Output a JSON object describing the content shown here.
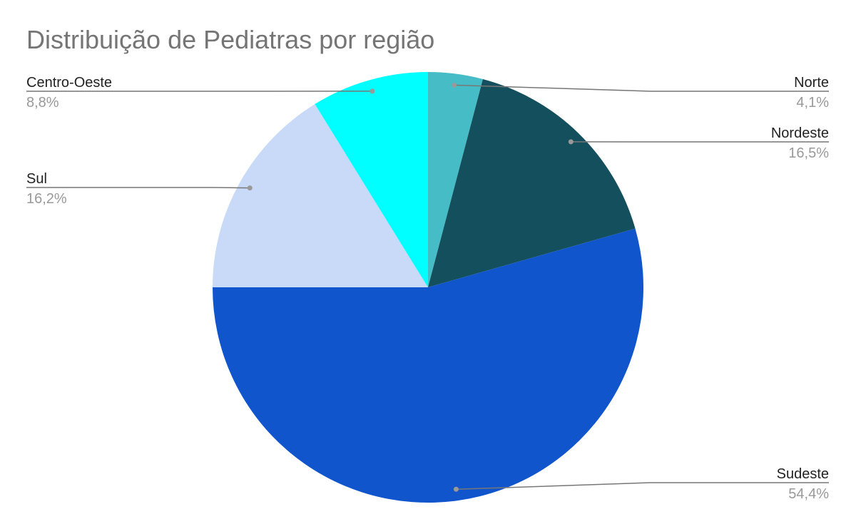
{
  "chart_data": {
    "type": "pie",
    "title": "Distribuição de Pediatras por região",
    "categories": [
      "Norte",
      "Nordeste",
      "Sudeste",
      "Sul",
      "Centro-Oeste"
    ],
    "values": [
      4.1,
      16.5,
      54.4,
      16.2,
      8.8
    ],
    "value_labels": [
      "4,1%",
      "16,5%",
      "54,4%",
      "16,2%",
      "8,8%"
    ],
    "colors": [
      "#46bdc6",
      "#134f5c",
      "#1155cc",
      "#c9daf8",
      "#00ffff"
    ]
  }
}
